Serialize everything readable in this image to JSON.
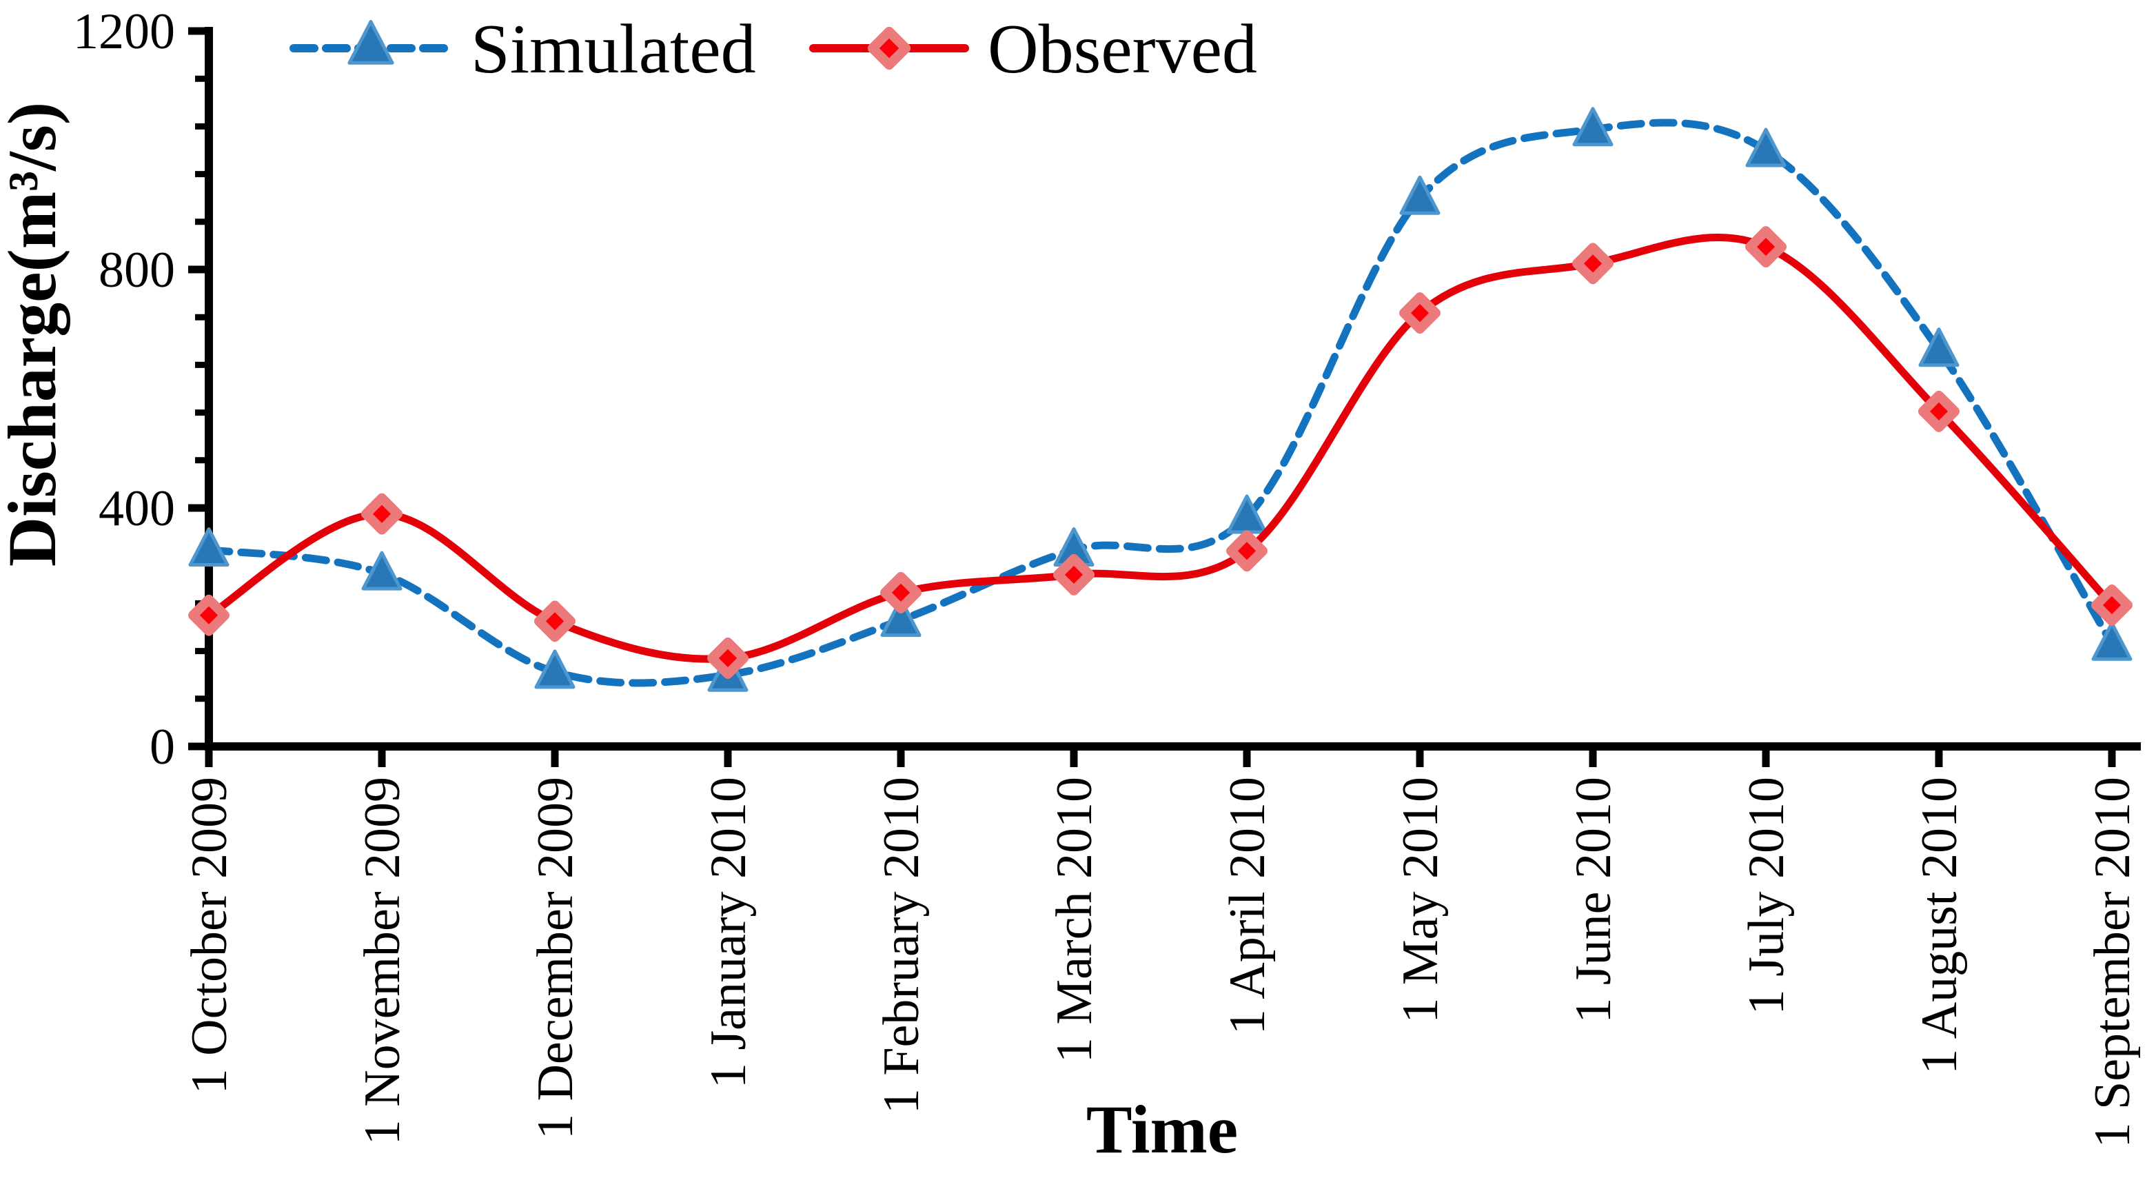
{
  "chart_data": {
    "type": "line",
    "title": "",
    "xlabel": "Time",
    "ylabel": "Discharge(m³/s)",
    "ylim": [
      0,
      1200
    ],
    "y_major_ticks": [
      0,
      400,
      800,
      1200
    ],
    "y_tick_labels": [
      "0",
      "400",
      "800",
      "1200"
    ],
    "y_minor_unit": 80,
    "grid": false,
    "legend_position": "top",
    "categories": [
      "1 October 2009",
      "1 November 2009",
      "1 December 2009",
      "1 January 2010",
      "1 February 2010",
      "1 March 2010",
      "1 April 2010",
      "1 May 2010",
      "1 June 2010",
      "1 July 2010",
      "1 August 2010",
      "1 September 2010"
    ],
    "series": [
      {
        "name": "Simulated",
        "marker": "triangle",
        "line_style": "dashed",
        "color": "#1373BF",
        "marker_fill": "#2878B8",
        "marker_edge": "#4E96CE",
        "values": [
          330,
          290,
          125,
          120,
          212,
          330,
          385,
          920,
          1035,
          1000,
          665,
          172
        ]
      },
      {
        "name": "Observed",
        "marker": "diamond",
        "line_style": "solid",
        "color": "#E30009",
        "marker_fill": "#FB0008",
        "marker_edge": "#EC7A7A",
        "values": [
          220,
          390,
          210,
          148,
          258,
          288,
          328,
          727,
          810,
          838,
          562,
          237
        ]
      }
    ],
    "axis_color": "#000000"
  }
}
